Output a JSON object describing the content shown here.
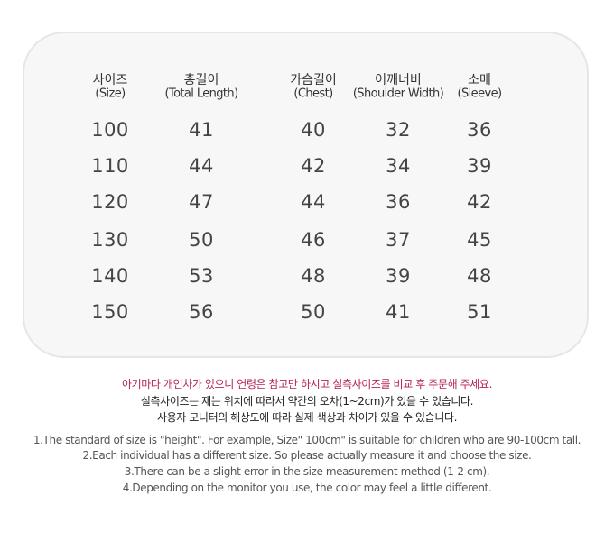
{
  "table": {
    "headers": [
      {
        "ko": "사이즈",
        "en": "(Size)"
      },
      {
        "ko": "총길이",
        "en": "(Total Length)"
      },
      {
        "ko": "가슴길이",
        "en": "(Chest)"
      },
      {
        "ko": "어깨너비",
        "en": "(Shoulder Width)"
      },
      {
        "ko": "소매",
        "en": "(Sleeve)"
      }
    ],
    "rows": [
      [
        "100",
        "41",
        "40",
        "32",
        "36"
      ],
      [
        "110",
        "44",
        "42",
        "34",
        "39"
      ],
      [
        "120",
        "47",
        "44",
        "36",
        "42"
      ],
      [
        "130",
        "50",
        "46",
        "37",
        "45"
      ],
      [
        "140",
        "53",
        "48",
        "39",
        "48"
      ],
      [
        "150",
        "56",
        "50",
        "41",
        "51"
      ]
    ]
  },
  "notes_ko": [
    "아기마다 개인차가 있으니 연령은 참고만 하시고 실측사이즈를 비교 후 주문해 주세요.",
    "실측사이즈는 재는 위치에 따라서 약간의  오차(1~2cm)가 있을 수 있습니다.",
    "사용자 모니터의 해상도에 따라 실제 색상과 차이가 있을 수 있습니다."
  ],
  "notes_en": [
    "1.The standard of size is \"height\". For example,  Size\" 100cm\" is suitable for children who are 90-100cm tall.",
    "2.Each individual has a different size. So please actually measure it and choose the size.",
    "3.There can be a slight error in the size measurement method (1-2 cm).",
    "4.Depending on the monitor you use, the color may feel a little different."
  ],
  "colors": {
    "highlight": "#b5244f",
    "card": "#f7f7f7"
  }
}
